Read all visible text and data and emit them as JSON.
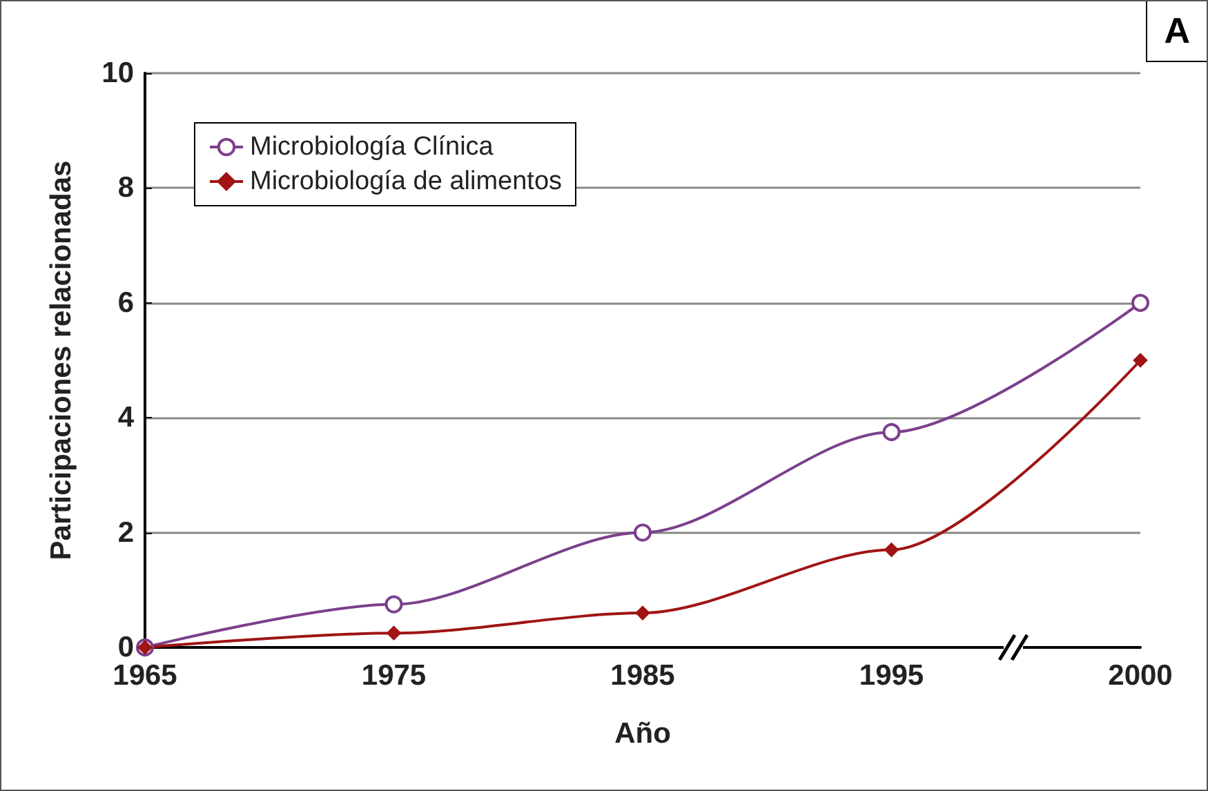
{
  "chart_data": {
    "type": "line",
    "xlabel": "Año",
    "ylabel": "Participaciones relacionadas",
    "annotations": [
      "A"
    ],
    "categories": [
      "1965",
      "1975",
      "1985",
      "1995",
      "2000"
    ],
    "series": [
      {
        "name": "Microbiología Clínica",
        "color": "#7b3f8c",
        "marker": "circle",
        "values": [
          0,
          0.75,
          2,
          3.75,
          6
        ]
      },
      {
        "name": "Microbiología de alimentos",
        "color": "#a01414",
        "marker": "diamond",
        "values": [
          0,
          0.25,
          0.6,
          1.7,
          5
        ]
      }
    ],
    "ylim": [
      0,
      10
    ],
    "yticks": [
      0,
      2,
      4,
      6,
      8,
      10
    ],
    "grid": "y",
    "legend": "top left",
    "line_style": "solid"
  }
}
